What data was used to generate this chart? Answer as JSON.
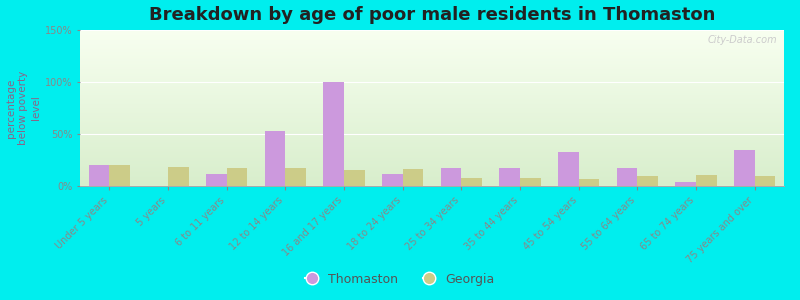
{
  "categories": [
    "Under 5 years",
    "5 years",
    "6 to 11 years",
    "12 to 14 years",
    "16 and 17 years",
    "18 to 24 years",
    "25 to 34 years",
    "35 to 44 years",
    "45 to 54 years",
    "55 to 64 years",
    "65 to 74 years",
    "75 years and over"
  ],
  "thomaston": [
    20,
    0,
    12,
    53,
    100,
    12,
    17,
    17,
    33,
    17,
    4,
    35
  ],
  "georgia": [
    20,
    18,
    17,
    17,
    15,
    16,
    8,
    8,
    7,
    10,
    11,
    10
  ],
  "thomaston_color": "#cc99dd",
  "georgia_color": "#cccc88",
  "title": "Breakdown by age of poor male residents in Thomaston",
  "ylabel": "percentage\nbelow poverty\nlevel",
  "ylim": [
    0,
    150
  ],
  "yticks": [
    0,
    50,
    100,
    150
  ],
  "ytick_labels": [
    "0%",
    "50%",
    "100%",
    "150%"
  ],
  "plot_bg_top": "#f8fff0",
  "plot_bg_bottom": "#d8eecc",
  "outer_background": "#00eeee",
  "bar_width": 0.35,
  "title_fontsize": 13,
  "axis_label_fontsize": 7.5,
  "tick_fontsize": 7,
  "legend_thomaston": "Thomaston",
  "legend_georgia": "Georgia",
  "text_color": "#886688",
  "ytick_color": "#888888",
  "watermark": "City-Data.com"
}
